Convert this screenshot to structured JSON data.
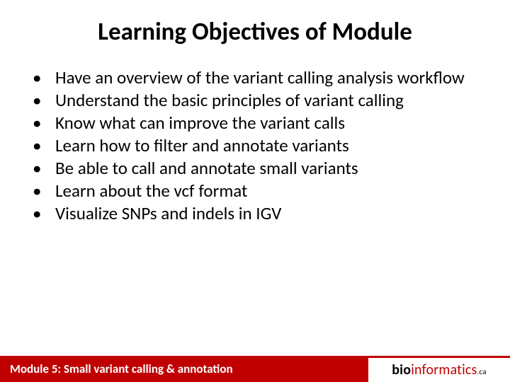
{
  "colors": {
    "accent": "#c00000",
    "background": "#ffffff",
    "text": "#000000",
    "footer_text": "#ffffff"
  },
  "typography": {
    "title_fontsize": 35,
    "title_weight": 700,
    "bullet_fontsize": 25,
    "footer_fontsize": 17,
    "logo_fontsize": 20
  },
  "title": "Learning Objectives of Module",
  "bullets": [
    "Have an overview of the variant calling analysis workflow",
    "Understand the basic principles of variant calling",
    "Know what can improve the variant calls",
    "Learn how to filter and annotate variants",
    "Be able to call and annotate small variants",
    "Learn about the vcf format",
    "Visualize SNPs and indels in IGV"
  ],
  "footer": {
    "module_label": "Module 5: Small variant calling & annotation",
    "logo": {
      "part1": "bio",
      "part2": "informatics",
      "part3": ".ca"
    }
  }
}
